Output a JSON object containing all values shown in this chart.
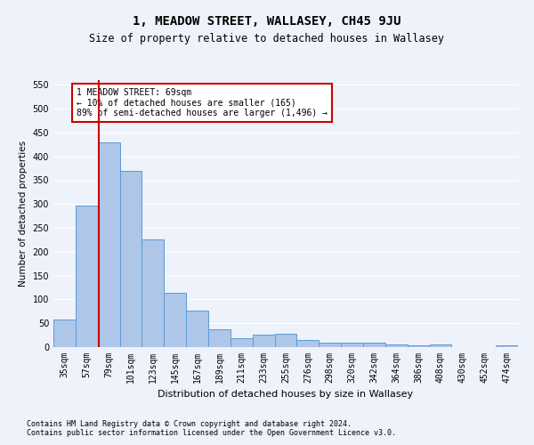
{
  "title": "1, MEADOW STREET, WALLASEY, CH45 9JU",
  "subtitle": "Size of property relative to detached houses in Wallasey",
  "xlabel": "Distribution of detached houses by size in Wallasey",
  "ylabel": "Number of detached properties",
  "footnote1": "Contains HM Land Registry data © Crown copyright and database right 2024.",
  "footnote2": "Contains public sector information licensed under the Open Government Licence v3.0.",
  "categories": [
    "35sqm",
    "57sqm",
    "79sqm",
    "101sqm",
    "123sqm",
    "145sqm",
    "167sqm",
    "189sqm",
    "211sqm",
    "233sqm",
    "255sqm",
    "276sqm",
    "298sqm",
    "320sqm",
    "342sqm",
    "364sqm",
    "386sqm",
    "408sqm",
    "430sqm",
    "452sqm",
    "474sqm"
  ],
  "values": [
    57,
    296,
    430,
    370,
    225,
    113,
    76,
    38,
    18,
    27,
    28,
    15,
    10,
    10,
    10,
    6,
    4,
    6,
    0,
    0,
    4
  ],
  "bar_color": "#aec6e8",
  "bar_edge_color": "#5b9bd5",
  "bar_linewidth": 0.7,
  "property_line_color": "#cc0000",
  "annotation_text": "1 MEADOW STREET: 69sqm\n← 10% of detached houses are smaller (165)\n89% of semi-detached houses are larger (1,496) →",
  "annotation_box_color": "#ffffff",
  "annotation_box_edge": "#cc0000",
  "annotation_fontsize": 7.0,
  "ylim": [
    0,
    560
  ],
  "yticks": [
    0,
    50,
    100,
    150,
    200,
    250,
    300,
    350,
    400,
    450,
    500,
    550
  ],
  "title_fontsize": 10,
  "subtitle_fontsize": 8.5,
  "xlabel_fontsize": 8,
  "ylabel_fontsize": 7.5,
  "tick_fontsize": 7,
  "footnote_fontsize": 6.0,
  "background_color": "#eef2fb",
  "grid_color": "#ffffff"
}
